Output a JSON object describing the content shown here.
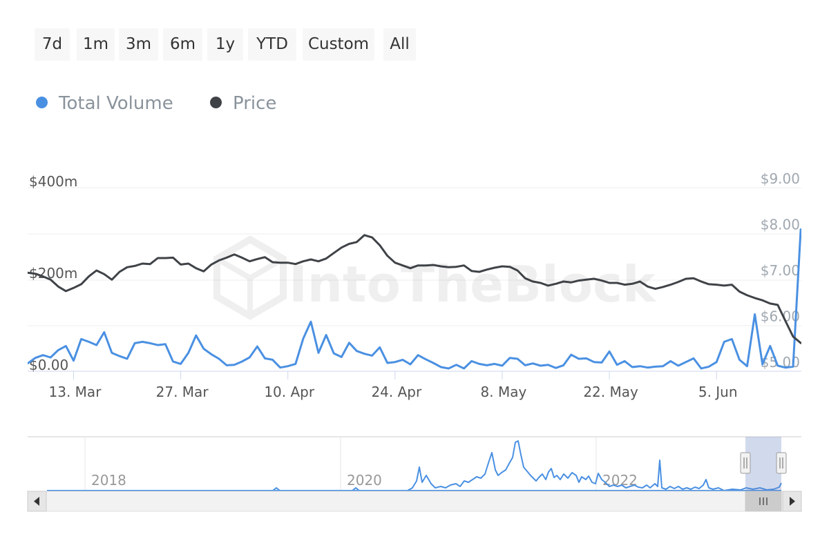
{
  "range_selector": {
    "buttons": [
      "7d",
      "1m",
      "3m",
      "6m",
      "1y",
      "YTD",
      "Custom",
      "All"
    ]
  },
  "legend": {
    "items": [
      {
        "label": "Total Volume",
        "color": "#4a90e2"
      },
      {
        "label": "Price",
        "color": "#3f4347"
      }
    ]
  },
  "watermark": "IntoTheBlock",
  "chart_data": {
    "type": "line",
    "x_start": "2024-03-07",
    "x_end": "2024-06-16",
    "x_ticks": [
      {
        "date": "2024-03-13",
        "label": "13. Mar"
      },
      {
        "date": "2024-03-27",
        "label": "27. Mar"
      },
      {
        "date": "2024-04-10",
        "label": "10. Apr"
      },
      {
        "date": "2024-04-24",
        "label": "24. Apr"
      },
      {
        "date": "2024-05-08",
        "label": "8. May"
      },
      {
        "date": "2024-05-22",
        "label": "22. May"
      },
      {
        "date": "2024-06-05",
        "label": "5. Jun"
      }
    ],
    "y_left": {
      "min": 0,
      "max": 400,
      "unit": "m",
      "ticks": [
        "$0.00",
        "$200m",
        "$400m"
      ],
      "tick_values": [
        0,
        200,
        400
      ]
    },
    "y_right": {
      "min": 5,
      "max": 9,
      "ticks": [
        "$5.00",
        "$6.00",
        "$7.00",
        "$8.00",
        "$9.00"
      ],
      "tick_values": [
        5,
        6,
        7,
        8,
        9
      ]
    },
    "grid": true,
    "series": [
      {
        "name": "Total Volume",
        "axis": "left",
        "color": "#4a90e2",
        "dates": [
          "2024-03-07",
          "2024-03-08",
          "2024-03-09",
          "2024-03-10",
          "2024-03-11",
          "2024-03-12",
          "2024-03-13",
          "2024-03-14",
          "2024-03-15",
          "2024-03-16",
          "2024-03-17",
          "2024-03-18",
          "2024-03-19",
          "2024-03-20",
          "2024-03-21",
          "2024-03-22",
          "2024-03-23",
          "2024-03-24",
          "2024-03-25",
          "2024-03-26",
          "2024-03-27",
          "2024-03-28",
          "2024-03-29",
          "2024-03-30",
          "2024-03-31",
          "2024-04-01",
          "2024-04-02",
          "2024-04-03",
          "2024-04-04",
          "2024-04-05",
          "2024-04-06",
          "2024-04-07",
          "2024-04-08",
          "2024-04-09",
          "2024-04-10",
          "2024-04-11",
          "2024-04-12",
          "2024-04-13",
          "2024-04-14",
          "2024-04-15",
          "2024-04-16",
          "2024-04-17",
          "2024-04-18",
          "2024-04-19",
          "2024-04-20",
          "2024-04-21",
          "2024-04-22",
          "2024-04-23",
          "2024-04-24",
          "2024-04-25",
          "2024-04-26",
          "2024-04-27",
          "2024-04-28",
          "2024-04-29",
          "2024-04-30",
          "2024-05-01",
          "2024-05-02",
          "2024-05-03",
          "2024-05-04",
          "2024-05-05",
          "2024-05-06",
          "2024-05-07",
          "2024-05-08",
          "2024-05-09",
          "2024-05-10",
          "2024-05-11",
          "2024-05-12",
          "2024-05-13",
          "2024-05-14",
          "2024-05-15",
          "2024-05-16",
          "2024-05-17",
          "2024-05-18",
          "2024-05-19",
          "2024-05-20",
          "2024-05-21",
          "2024-05-22",
          "2024-05-23",
          "2024-05-24",
          "2024-05-25",
          "2024-05-26",
          "2024-05-27",
          "2024-05-28",
          "2024-05-29",
          "2024-05-30",
          "2024-05-31",
          "2024-06-01",
          "2024-06-02",
          "2024-06-03",
          "2024-06-04",
          "2024-06-05",
          "2024-06-06",
          "2024-06-07",
          "2024-06-08",
          "2024-06-09",
          "2024-06-10",
          "2024-06-11",
          "2024-06-12",
          "2024-06-13",
          "2024-06-14",
          "2024-06-15",
          "2024-06-16"
        ],
        "values": [
          17,
          29,
          35,
          30,
          46,
          55,
          23,
          70,
          64,
          57,
          85,
          40,
          33,
          27,
          61,
          64,
          61,
          57,
          59,
          21,
          16,
          40,
          78,
          49,
          37,
          27,
          13,
          14,
          21,
          30,
          54,
          28,
          25,
          8,
          11,
          16,
          71,
          108,
          40,
          79,
          39,
          31,
          62,
          44,
          38,
          34,
          52,
          18,
          20,
          25,
          15,
          35,
          26,
          18,
          9,
          6,
          14,
          6,
          22,
          16,
          13,
          16,
          12,
          29,
          27,
          13,
          17,
          12,
          14,
          7,
          13,
          36,
          27,
          28,
          20,
          19,
          43,
          14,
          22,
          9,
          11,
          8,
          10,
          11,
          22,
          12,
          20,
          28,
          6,
          10,
          20,
          64,
          70,
          25,
          11,
          124,
          15,
          55,
          12,
          8,
          10,
          309
        ]
      },
      {
        "name": "Price",
        "axis": "right",
        "color": "#3f4347",
        "dates": [
          "2024-03-07",
          "2024-03-08",
          "2024-03-09",
          "2024-03-10",
          "2024-03-11",
          "2024-03-12",
          "2024-03-13",
          "2024-03-14",
          "2024-03-15",
          "2024-03-16",
          "2024-03-17",
          "2024-03-18",
          "2024-03-19",
          "2024-03-20",
          "2024-03-21",
          "2024-03-22",
          "2024-03-23",
          "2024-03-24",
          "2024-03-25",
          "2024-03-26",
          "2024-03-27",
          "2024-03-28",
          "2024-03-29",
          "2024-03-30",
          "2024-03-31",
          "2024-04-01",
          "2024-04-02",
          "2024-04-03",
          "2024-04-04",
          "2024-04-05",
          "2024-04-06",
          "2024-04-07",
          "2024-04-08",
          "2024-04-09",
          "2024-04-10",
          "2024-04-11",
          "2024-04-12",
          "2024-04-13",
          "2024-04-14",
          "2024-04-15",
          "2024-04-16",
          "2024-04-17",
          "2024-04-18",
          "2024-04-19",
          "2024-04-20",
          "2024-04-21",
          "2024-04-22",
          "2024-04-23",
          "2024-04-24",
          "2024-04-25",
          "2024-04-26",
          "2024-04-27",
          "2024-04-28",
          "2024-04-29",
          "2024-04-30",
          "2024-05-01",
          "2024-05-02",
          "2024-05-03",
          "2024-05-04",
          "2024-05-05",
          "2024-05-06",
          "2024-05-07",
          "2024-05-08",
          "2024-05-09",
          "2024-05-10",
          "2024-05-11",
          "2024-05-12",
          "2024-05-13",
          "2024-05-14",
          "2024-05-15",
          "2024-05-16",
          "2024-05-17",
          "2024-05-18",
          "2024-05-19",
          "2024-05-20",
          "2024-05-21",
          "2024-05-22",
          "2024-05-23",
          "2024-05-24",
          "2024-05-25",
          "2024-05-26",
          "2024-05-27",
          "2024-05-28",
          "2024-05-29",
          "2024-05-30",
          "2024-05-31",
          "2024-06-01",
          "2024-06-02",
          "2024-06-03",
          "2024-06-04",
          "2024-06-05",
          "2024-06-06",
          "2024-06-07",
          "2024-06-08",
          "2024-06-09",
          "2024-06-10",
          "2024-06-11",
          "2024-06-12",
          "2024-06-13",
          "2024-06-14",
          "2024-06-15",
          "2024-06-16"
        ],
        "values": [
          6.95,
          6.93,
          6.87,
          6.8,
          6.65,
          6.55,
          6.62,
          6.7,
          6.87,
          7.0,
          6.92,
          6.8,
          6.97,
          7.07,
          7.1,
          7.15,
          7.14,
          7.27,
          7.27,
          7.28,
          7.13,
          7.15,
          7.05,
          6.98,
          7.13,
          7.22,
          7.28,
          7.35,
          7.28,
          7.2,
          7.25,
          7.29,
          7.18,
          7.17,
          7.17,
          7.14,
          7.2,
          7.24,
          7.2,
          7.26,
          7.38,
          7.5,
          7.58,
          7.62,
          7.77,
          7.72,
          7.55,
          7.32,
          7.17,
          7.11,
          7.05,
          7.11,
          7.11,
          7.12,
          7.09,
          7.07,
          7.08,
          7.11,
          6.99,
          6.97,
          7.02,
          7.06,
          7.09,
          7.08,
          7.0,
          6.83,
          6.76,
          6.73,
          6.67,
          6.71,
          6.76,
          6.74,
          6.78,
          6.8,
          6.82,
          6.78,
          6.73,
          6.73,
          6.69,
          6.71,
          6.76,
          6.65,
          6.6,
          6.64,
          6.69,
          6.75,
          6.82,
          6.83,
          6.76,
          6.7,
          6.69,
          6.67,
          6.69,
          6.54,
          6.46,
          6.4,
          6.35,
          6.28,
          6.25,
          5.9,
          5.56,
          5.42
        ]
      }
    ],
    "navigator": {
      "year_labels": [
        "2018",
        "2020",
        "2022"
      ]
    }
  }
}
